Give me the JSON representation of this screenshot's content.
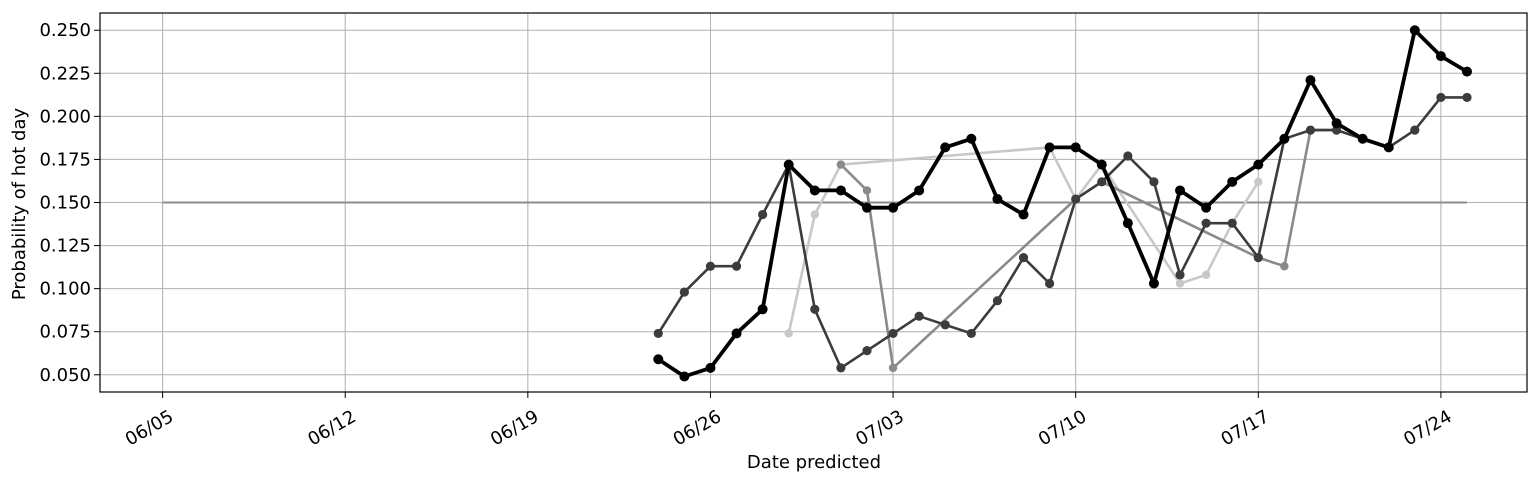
{
  "chart_data": {
    "type": "line",
    "xlabel": "Date predicted",
    "ylabel": "Probability of hot day",
    "xlim": [
      "06/02",
      "07/27"
    ],
    "ylim": [
      0.04,
      0.26
    ],
    "grid": true,
    "x_ticks": [
      "06/05",
      "06/12",
      "06/19",
      "06/26",
      "07/03",
      "07/10",
      "07/17",
      "07/24"
    ],
    "y_ticks": [
      "0.050",
      "0.075",
      "0.100",
      "0.125",
      "0.150",
      "0.175",
      "0.200",
      "0.225",
      "0.250"
    ],
    "reference_line": {
      "y": 0.15,
      "x_from": "06/05",
      "x_to": "07/25",
      "color": "#8c8c8c"
    },
    "series": [
      {
        "color": "#c8c8c8",
        "points": [
          [
            "06/29",
            0.074
          ],
          [
            "06/30",
            0.143
          ],
          [
            "07/01",
            0.172
          ],
          [
            "07/09",
            0.182
          ],
          [
            "07/10",
            0.152
          ],
          [
            "07/11",
            0.172
          ],
          [
            "07/14",
            0.103
          ],
          [
            "07/15",
            0.108
          ],
          [
            "07/16",
            0.138
          ],
          [
            "07/17",
            0.162
          ]
        ]
      },
      {
        "color": "#8a8a8a",
        "points": [
          [
            "07/01",
            0.172
          ],
          [
            "07/02",
            0.157
          ],
          [
            "07/03",
            0.054
          ],
          [
            "07/10",
            0.152
          ],
          [
            "07/11",
            0.162
          ],
          [
            "07/17",
            0.118
          ],
          [
            "07/18",
            0.113
          ],
          [
            "07/19",
            0.192
          ],
          [
            "07/20",
            0.192
          ]
        ]
      },
      {
        "color": "#3c3c3c",
        "points": [
          [
            "06/24",
            0.074
          ],
          [
            "06/25",
            0.098
          ],
          [
            "06/26",
            0.113
          ],
          [
            "06/27",
            0.113
          ],
          [
            "06/28",
            0.143
          ],
          [
            "06/29",
            0.172
          ],
          [
            "06/30",
            0.088
          ],
          [
            "07/01",
            0.054
          ],
          [
            "07/02",
            0.064
          ],
          [
            "07/03",
            0.074
          ],
          [
            "07/04",
            0.084
          ],
          [
            "07/05",
            0.079
          ],
          [
            "07/06",
            0.074
          ],
          [
            "07/07",
            0.093
          ],
          [
            "07/08",
            0.118
          ],
          [
            "07/09",
            0.103
          ],
          [
            "07/10",
            0.152
          ],
          [
            "07/11",
            0.162
          ],
          [
            "07/12",
            0.177
          ],
          [
            "07/13",
            0.162
          ],
          [
            "07/14",
            0.108
          ],
          [
            "07/15",
            0.138
          ],
          [
            "07/16",
            0.138
          ],
          [
            "07/17",
            0.118
          ],
          [
            "07/18",
            0.187
          ],
          [
            "07/19",
            0.192
          ],
          [
            "07/20",
            0.192
          ],
          [
            "07/21",
            0.187
          ],
          [
            "07/22",
            0.182
          ],
          [
            "07/23",
            0.192
          ],
          [
            "07/24",
            0.211
          ],
          [
            "07/25",
            0.211
          ]
        ]
      },
      {
        "color": "#000000",
        "points": [
          [
            "06/24",
            0.059
          ],
          [
            "06/25",
            0.049
          ],
          [
            "06/26",
            0.054
          ],
          [
            "06/27",
            0.074
          ],
          [
            "06/28",
            0.088
          ],
          [
            "06/29",
            0.172
          ],
          [
            "06/30",
            0.157
          ],
          [
            "07/01",
            0.157
          ],
          [
            "07/02",
            0.147
          ],
          [
            "07/03",
            0.147
          ],
          [
            "07/04",
            0.157
          ],
          [
            "07/05",
            0.182
          ],
          [
            "07/06",
            0.187
          ],
          [
            "07/07",
            0.152
          ],
          [
            "07/08",
            0.143
          ],
          [
            "07/09",
            0.182
          ],
          [
            "07/10",
            0.182
          ],
          [
            "07/11",
            0.172
          ],
          [
            "07/12",
            0.138
          ],
          [
            "07/13",
            0.103
          ],
          [
            "07/14",
            0.157
          ],
          [
            "07/15",
            0.147
          ],
          [
            "07/16",
            0.162
          ],
          [
            "07/17",
            0.172
          ],
          [
            "07/18",
            0.187
          ],
          [
            "07/19",
            0.221
          ],
          [
            "07/20",
            0.196
          ],
          [
            "07/21",
            0.187
          ],
          [
            "07/22",
            0.182
          ],
          [
            "07/23",
            0.25
          ],
          [
            "07/24",
            0.235
          ],
          [
            "07/25",
            0.226
          ]
        ]
      }
    ]
  }
}
